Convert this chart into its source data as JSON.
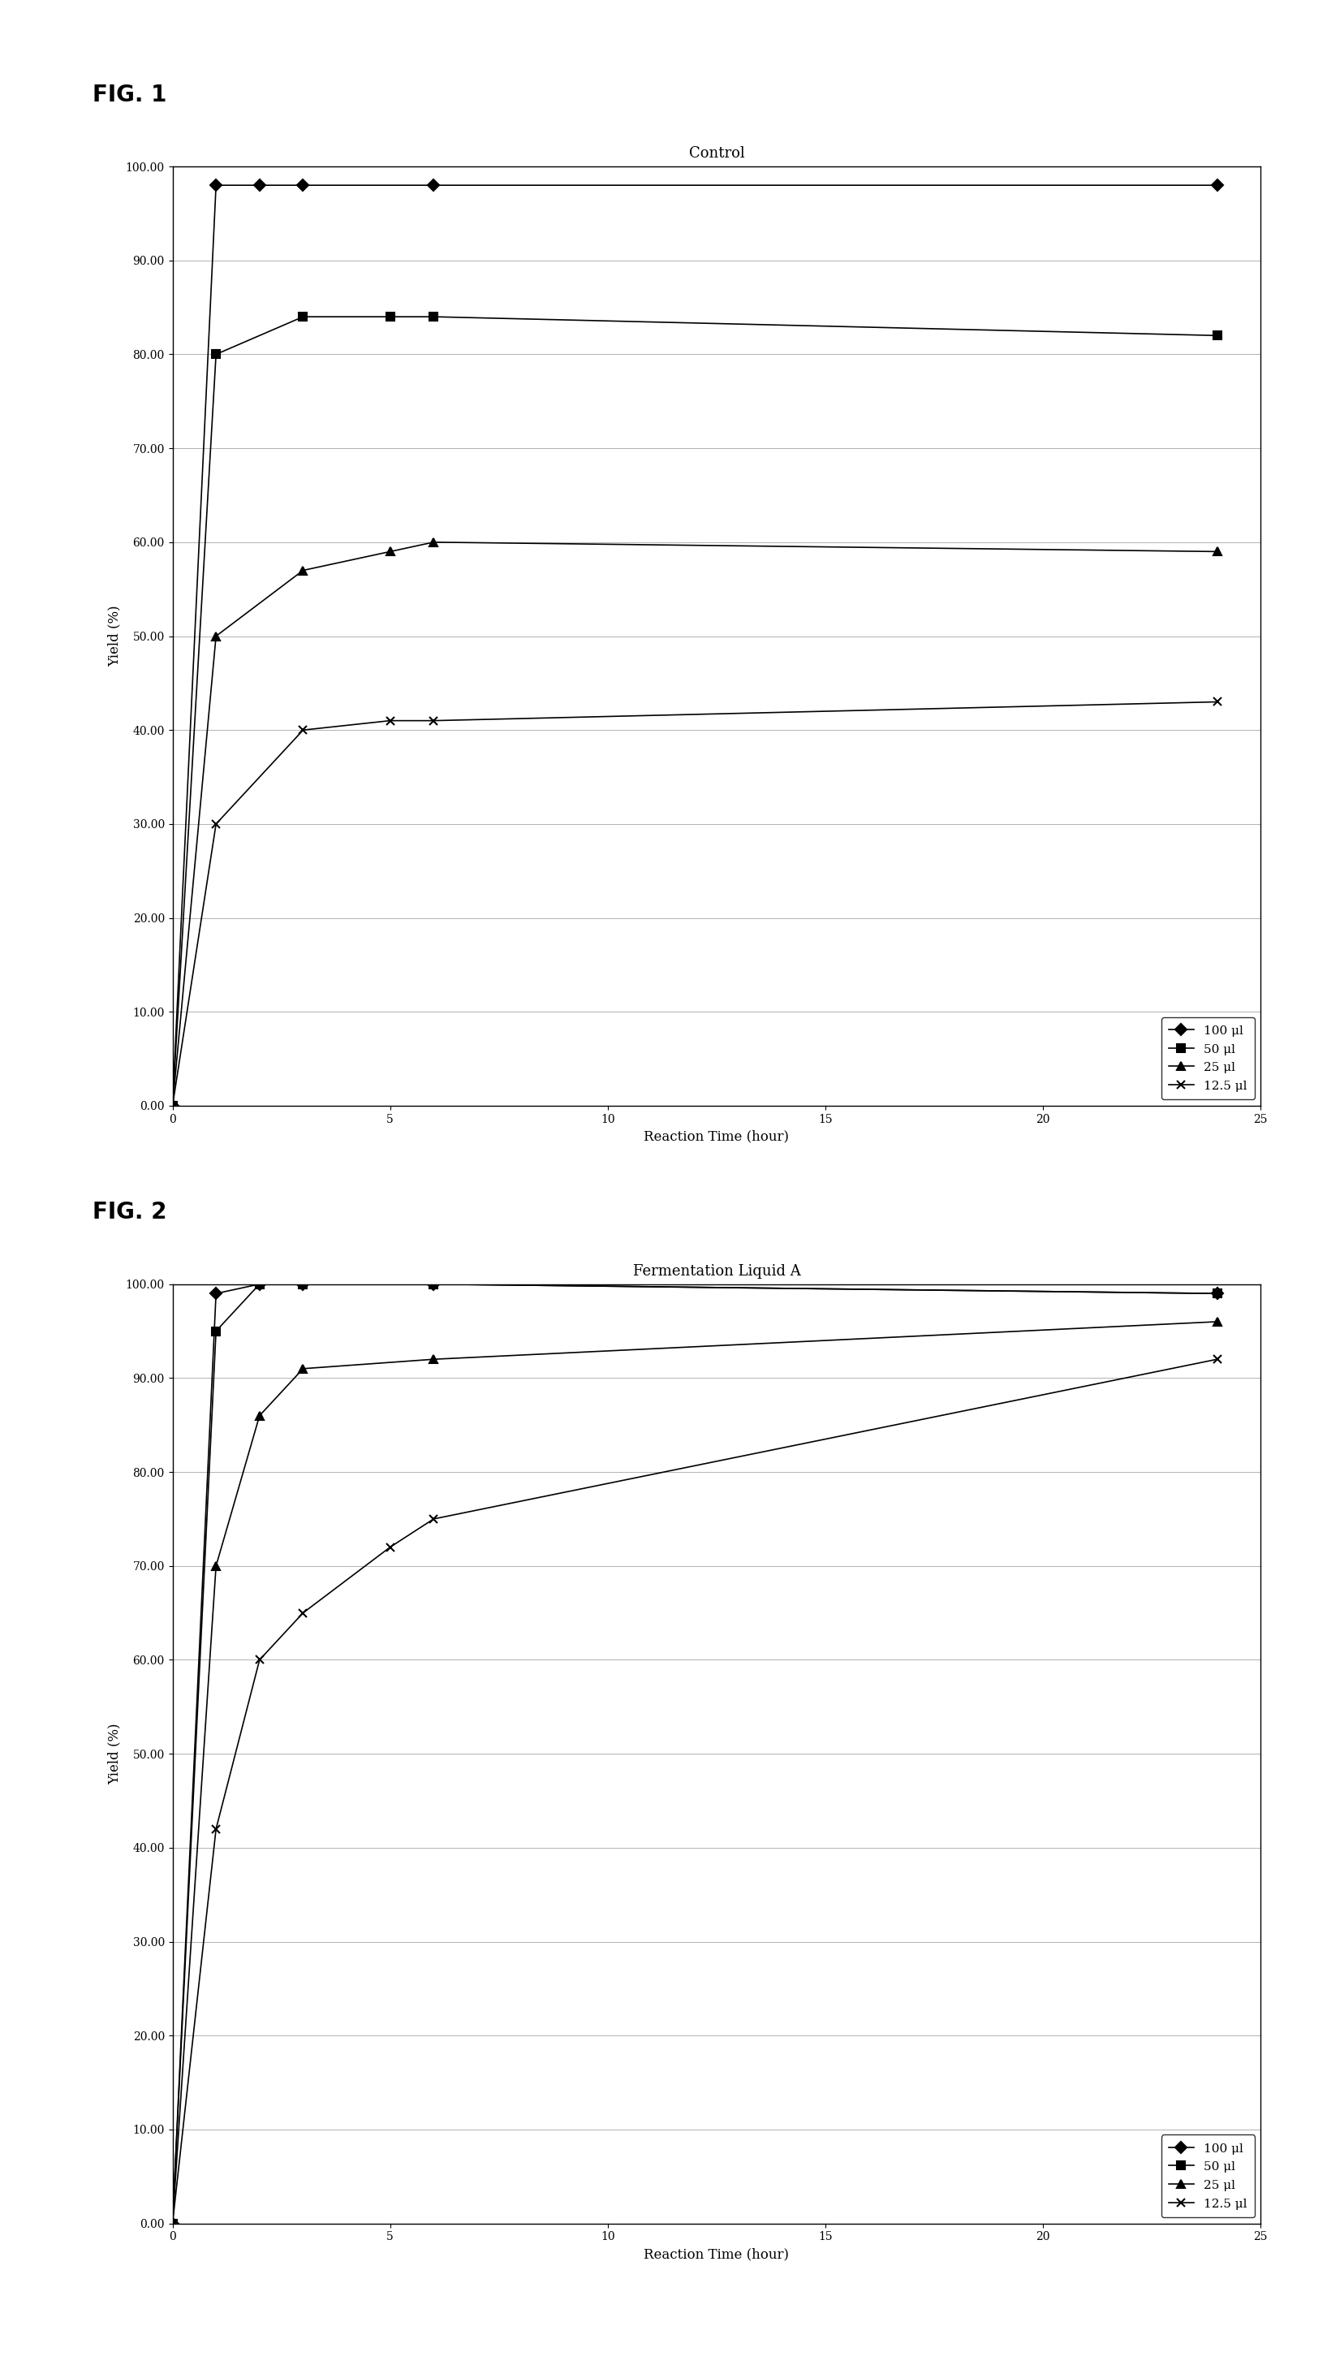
{
  "fig1": {
    "title": "Control",
    "series": [
      {
        "label": "100 μl",
        "x": [
          0,
          1,
          2,
          3,
          6,
          24
        ],
        "y": [
          0,
          98,
          98,
          98,
          98,
          98
        ],
        "marker": "D",
        "markersize": 7,
        "color": "black",
        "linestyle": "-"
      },
      {
        "label": "50 μl",
        "x": [
          0,
          1,
          3,
          5,
          6,
          24
        ],
        "y": [
          0,
          80,
          84,
          84,
          84,
          82
        ],
        "marker": "s",
        "markersize": 7,
        "color": "black",
        "linestyle": "-"
      },
      {
        "label": "25 μl",
        "x": [
          0,
          1,
          3,
          5,
          6,
          24
        ],
        "y": [
          0,
          50,
          57,
          59,
          60,
          59
        ],
        "marker": "^",
        "markersize": 7,
        "color": "black",
        "linestyle": "-"
      },
      {
        "label": "12.5 μl",
        "x": [
          0,
          1,
          3,
          5,
          6,
          24
        ],
        "y": [
          0,
          30,
          40,
          41,
          41,
          43
        ],
        "marker": "x",
        "markersize": 7,
        "color": "black",
        "linestyle": "-"
      }
    ],
    "xlabel": "Reaction Time (hour)",
    "ylabel": "Yield (%)",
    "xlim": [
      0,
      25
    ],
    "ylim": [
      0,
      100
    ],
    "xticks": [
      0,
      5,
      10,
      15,
      20,
      25
    ],
    "yticks": [
      0,
      10,
      20,
      30,
      40,
      50,
      60,
      70,
      80,
      90,
      100
    ],
    "ytick_labels": [
      "0.00",
      "10.00",
      "20.00",
      "30.00",
      "40.00",
      "50.00",
      "60.00",
      "70.00",
      "80.00",
      "90.00",
      "100.00"
    ]
  },
  "fig2": {
    "title": "Fermentation Liquid A",
    "series": [
      {
        "label": "100 μl",
        "x": [
          0,
          1,
          2,
          3,
          6,
          24
        ],
        "y": [
          0,
          99,
          100,
          100,
          100,
          99
        ],
        "marker": "D",
        "markersize": 7,
        "color": "black",
        "linestyle": "-"
      },
      {
        "label": "50 μl",
        "x": [
          0,
          1,
          2,
          3,
          6,
          24
        ],
        "y": [
          0,
          95,
          100,
          100,
          100,
          99
        ],
        "marker": "s",
        "markersize": 7,
        "color": "black",
        "linestyle": "-"
      },
      {
        "label": "25 μl",
        "x": [
          0,
          1,
          2,
          3,
          6,
          24
        ],
        "y": [
          0,
          70,
          86,
          91,
          92,
          96
        ],
        "marker": "^",
        "markersize": 7,
        "color": "black",
        "linestyle": "-"
      },
      {
        "label": "12.5 μl",
        "x": [
          0,
          1,
          2,
          3,
          5,
          6,
          24
        ],
        "y": [
          0,
          42,
          60,
          65,
          72,
          75,
          92
        ],
        "marker": "x",
        "markersize": 7,
        "color": "black",
        "linestyle": "-"
      }
    ],
    "xlabel": "Reaction Time (hour)",
    "ylabel": "Yield (%)",
    "xlim": [
      0,
      25
    ],
    "ylim": [
      0,
      100
    ],
    "xticks": [
      0,
      5,
      10,
      15,
      20,
      25
    ],
    "yticks": [
      0,
      10,
      20,
      30,
      40,
      50,
      60,
      70,
      80,
      90,
      100
    ],
    "ytick_labels": [
      "0.00",
      "10.00",
      "20.00",
      "30.00",
      "40.00",
      "50.00",
      "60.00",
      "70.00",
      "80.00",
      "90.00",
      "100.00"
    ]
  },
  "fig1_label": "FIG. 1",
  "fig2_label": "FIG. 2",
  "background_color": "#ffffff",
  "legend_fontsize": 11,
  "title_fontsize": 13,
  "label_fontsize": 12,
  "tick_fontsize": 10,
  "figlabel_fontsize": 20
}
